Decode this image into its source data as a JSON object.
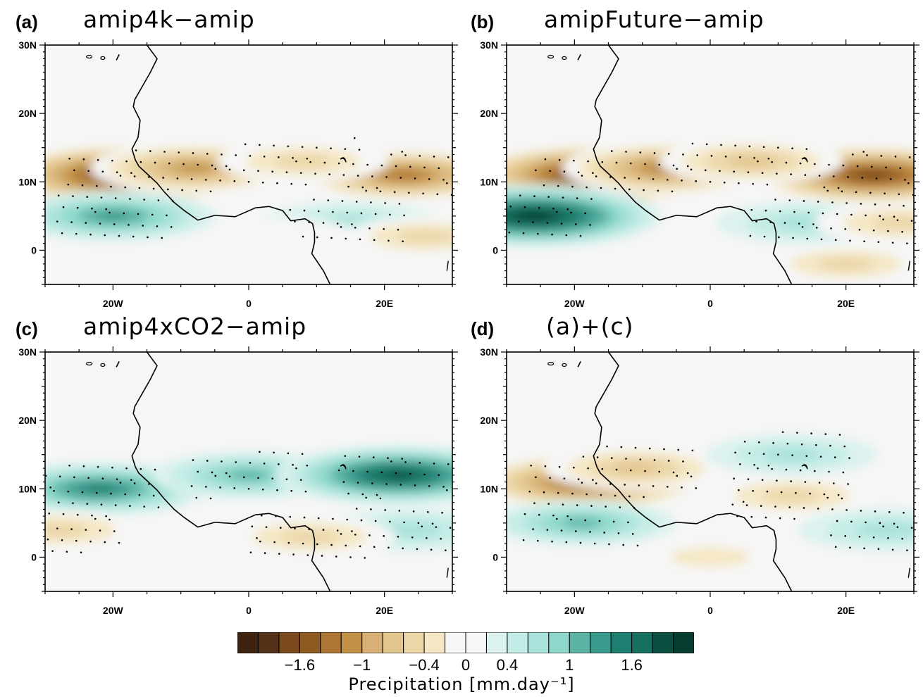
{
  "chart_data": {
    "type": "heatmap",
    "region": "West Africa / tropical Atlantic",
    "xaxis": {
      "ticks": [
        "20W",
        "0",
        "20E"
      ],
      "range": [
        -30,
        30
      ]
    },
    "yaxis": {
      "ticks": [
        "30N",
        "20N",
        "10N",
        "0"
      ],
      "range": [
        -5,
        30
      ]
    },
    "stippling": true,
    "panels": [
      {
        "letter": "(a)",
        "title": "amip4k−amip",
        "anomalies": [
          {
            "lon": -18,
            "lat": 11,
            "value": -2.0
          },
          {
            "lon": -8,
            "lat": 12,
            "value": -1.2
          },
          {
            "lon": 23,
            "lat": 11,
            "value": -1.3
          },
          {
            "lon": 8,
            "lat": 13,
            "value": -0.6
          },
          {
            "lon": -20,
            "lat": 5,
            "value": 1.2
          },
          {
            "lon": 15,
            "lat": 4,
            "value": 0.7
          },
          {
            "lon": 5,
            "lat": 2,
            "value": -0.3
          },
          {
            "lon": 26,
            "lat": 2,
            "value": -0.5
          }
        ]
      },
      {
        "letter": "(b)",
        "title": "amipFuture−amip",
        "anomalies": [
          {
            "lon": -17,
            "lat": 11,
            "value": -2.0
          },
          {
            "lon": -6,
            "lat": 12,
            "value": -1.3
          },
          {
            "lon": 24,
            "lat": 11,
            "value": -1.8
          },
          {
            "lon": 6,
            "lat": 13,
            "value": -0.8
          },
          {
            "lon": -26,
            "lat": 5,
            "value": 2.0
          },
          {
            "lon": 14,
            "lat": 4,
            "value": 0.7
          },
          {
            "lon": 28,
            "lat": 4,
            "value": -0.6
          },
          {
            "lon": 20,
            "lat": -2,
            "value": -0.5
          }
        ]
      },
      {
        "letter": "(c)",
        "title": "amip4xCO2−amip",
        "anomalies": [
          {
            "lon": -22,
            "lat": 10,
            "value": 1.4
          },
          {
            "lon": 0,
            "lat": 12,
            "value": 1.0
          },
          {
            "lon": 22,
            "lat": 12,
            "value": 1.8
          },
          {
            "lon": 24,
            "lat": 4,
            "value": 0.7
          },
          {
            "lon": 9,
            "lat": 3,
            "value": -0.6
          },
          {
            "lon": -28,
            "lat": 4,
            "value": -0.6
          }
        ]
      },
      {
        "letter": "(d)",
        "title": "(a)+(c)",
        "anomalies": [
          {
            "lon": -18,
            "lat": 11,
            "value": -1.6
          },
          {
            "lon": -11,
            "lat": 13,
            "value": -0.8
          },
          {
            "lon": 12,
            "lat": 9,
            "value": -0.6
          },
          {
            "lon": -19,
            "lat": 5,
            "value": 0.9
          },
          {
            "lon": 12,
            "lat": 15,
            "value": 0.6
          },
          {
            "lon": 26,
            "lat": 4,
            "value": 0.7
          },
          {
            "lon": 0,
            "lat": 0,
            "value": -0.4
          }
        ]
      }
    ],
    "colorbar": {
      "colors": [
        "#3e2410",
        "#54321a",
        "#7a4a1e",
        "#8e5a22",
        "#ad7632",
        "#c19146",
        "#d6b074",
        "#e2c68e",
        "#ebd6a8",
        "#f4e7c4",
        "#f6f6f6",
        "#f6f6f6",
        "#dcf2ee",
        "#c4ece6",
        "#a9e2da",
        "#8ed8cb",
        "#5bb3a6",
        "#3a9a8c",
        "#1e7f70",
        "#16705f",
        "#0c4f40",
        "#063b30"
      ],
      "tick_labels": [
        "−1.6",
        "−1",
        "−0.4",
        "0",
        "0.4",
        "1",
        "1.6"
      ],
      "tick_values": [
        -1.6,
        -1,
        -0.4,
        0,
        0.4,
        1,
        1.6
      ],
      "title": "Precipitation  [mm.day⁻¹]"
    }
  }
}
